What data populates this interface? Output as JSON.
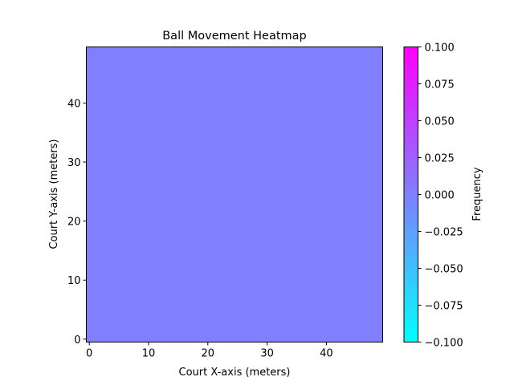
{
  "chart_data": {
    "type": "heatmap",
    "title": "Ball Movement Heatmap",
    "xlabel": "Court X-axis (meters)",
    "ylabel": "Court Y-axis (meters)",
    "xlim": [
      -0.5,
      49.5
    ],
    "ylim": [
      -0.5,
      49.5
    ],
    "x_ticks": [
      0,
      10,
      20,
      30,
      40
    ],
    "y_ticks": [
      0,
      10,
      20,
      30,
      40
    ],
    "grid": false,
    "colormap": "cool",
    "fill_value": 0.0,
    "fill_color": "#8080ff",
    "colorbar": {
      "label": "Frequency",
      "range": [
        -0.1,
        0.1
      ],
      "ticks": [
        -0.1,
        -0.075,
        -0.05,
        -0.025,
        0.0,
        0.025,
        0.05,
        0.075,
        0.1
      ],
      "tick_labels": [
        "−0.100",
        "−0.075",
        "−0.050",
        "−0.025",
        "0.000",
        "0.025",
        "0.050",
        "0.075",
        "0.100"
      ],
      "color_low": "#00ffff",
      "color_high": "#ff00ff"
    }
  }
}
